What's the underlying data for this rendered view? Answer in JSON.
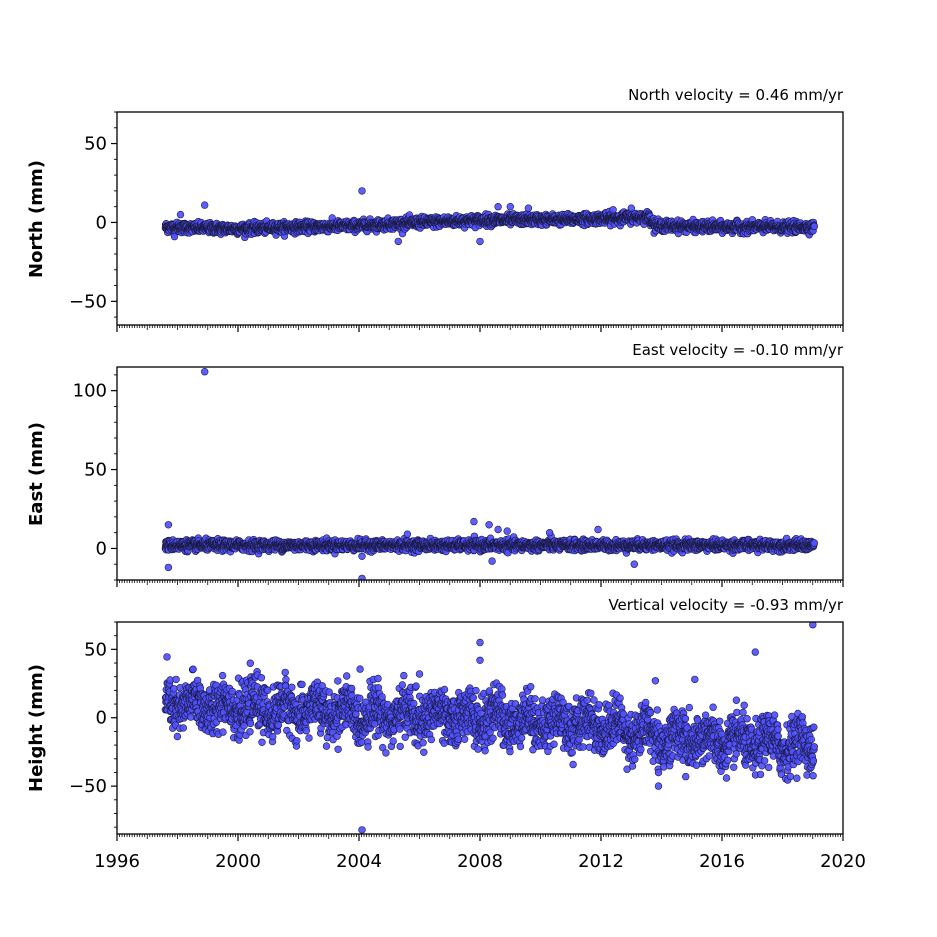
{
  "chart_data": [
    {
      "type": "scatter",
      "title": "North velocity = 0.46 mm/yr",
      "ylabel": "North (mm)",
      "xlim": [
        1996,
        2020
      ],
      "ylim": [
        -65,
        70
      ],
      "yticks": [
        -50,
        0,
        50
      ],
      "ytick_labels": [
        "−50",
        "0",
        "50"
      ],
      "marker_color": "#5050ff",
      "edge_color": "#1a1a40",
      "trend": [
        [
          1997.6,
          -3
        ],
        [
          2000,
          -4
        ],
        [
          2004,
          -2
        ],
        [
          2006,
          0
        ],
        [
          2008,
          1.5
        ],
        [
          2011,
          2
        ],
        [
          2013.6,
          3.5
        ],
        [
          2013.8,
          -2
        ],
        [
          2016,
          -3
        ],
        [
          2019,
          -3
        ]
      ],
      "spread": 1.6,
      "outliers": [
        [
          1998.9,
          11
        ],
        [
          1998.1,
          5
        ],
        [
          2004.1,
          20
        ],
        [
          2005.3,
          -12
        ],
        [
          2008.0,
          -12
        ],
        [
          2008.6,
          10
        ],
        [
          2009.0,
          10
        ],
        [
          2009.6,
          9
        ],
        [
          2012.4,
          8
        ],
        [
          2013.0,
          9
        ],
        [
          1997.9,
          -9
        ]
      ]
    },
    {
      "type": "scatter",
      "title": "East velocity = -0.10 mm/yr",
      "ylabel": "East (mm)",
      "xlim": [
        1996,
        2020
      ],
      "ylim": [
        -20,
        115
      ],
      "yticks": [
        0,
        50,
        100
      ],
      "ytick_labels": [
        "0",
        "50",
        "100"
      ],
      "marker_color": "#5050ff",
      "edge_color": "#1a1a40",
      "trend": [
        [
          1997.6,
          2
        ],
        [
          2019,
          2
        ]
      ],
      "spread": 1.6,
      "outliers": [
        [
          1998.9,
          112
        ],
        [
          1997.7,
          15
        ],
        [
          1997.7,
          -12
        ],
        [
          2004.1,
          -19
        ],
        [
          2004.1,
          -5
        ],
        [
          2007.8,
          17
        ],
        [
          2008.3,
          15
        ],
        [
          2008.6,
          12
        ],
        [
          2008.4,
          -8
        ],
        [
          2008.9,
          11
        ],
        [
          2010.3,
          10
        ],
        [
          2011.9,
          12
        ],
        [
          2013.1,
          -10
        ],
        [
          2005.6,
          9
        ]
      ]
    },
    {
      "type": "scatter",
      "title": "Vertical velocity = -0.93 mm/yr",
      "ylabel": "Height (mm)",
      "xlabel": "",
      "xlim": [
        1996,
        2020
      ],
      "ylim": [
        -85,
        70
      ],
      "yticks": [
        -50,
        0,
        50
      ],
      "ytick_labels": [
        "−50",
        "0",
        "50"
      ],
      "xticks": [
        1996,
        2000,
        2004,
        2008,
        2012,
        2016,
        2020
      ],
      "xtick_labels": [
        "1996",
        "2000",
        "2004",
        "2008",
        "2012",
        "2016",
        "2020"
      ],
      "marker_color": "#5050ff",
      "edge_color": "#1a1a40",
      "trend": [
        [
          1997.6,
          10
        ],
        [
          2000,
          8
        ],
        [
          2004,
          3
        ],
        [
          2008,
          0
        ],
        [
          2012,
          -5
        ],
        [
          2014,
          -14
        ],
        [
          2016,
          -18
        ],
        [
          2019,
          -20
        ]
      ],
      "spread": 9,
      "outliers": [
        [
          2008.0,
          55
        ],
        [
          2008.0,
          42
        ],
        [
          2004.1,
          -82
        ],
        [
          2019.0,
          68
        ],
        [
          2017.1,
          48
        ],
        [
          2015.1,
          28
        ],
        [
          2013.8,
          27
        ],
        [
          2013.9,
          -50
        ],
        [
          2013.9,
          -40
        ],
        [
          2014.8,
          -43
        ],
        [
          2006.0,
          32
        ]
      ]
    }
  ]
}
